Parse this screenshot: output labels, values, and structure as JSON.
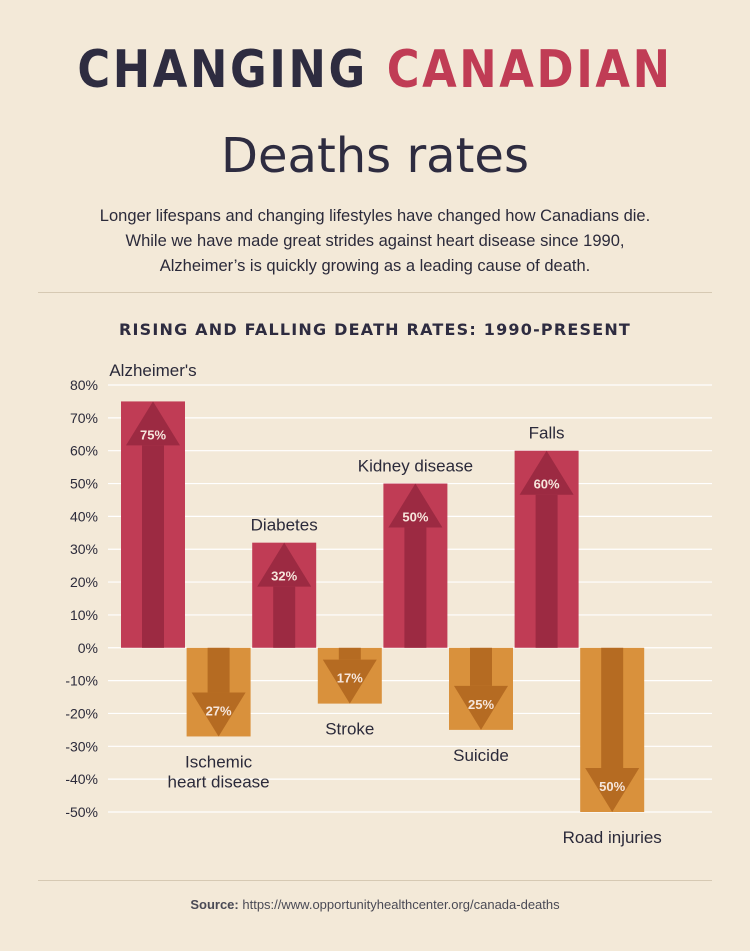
{
  "title_part1": "CHANGING",
  "title_part2": "CANADIAN",
  "subtitle": "Deaths rates",
  "description_lines": [
    "Longer lifespans and changing lifestyles have changed how Canadians die.",
    "While we have made great strides against heart disease since 1990,",
    "Alzheimer’s is quickly growing as a leading cause of death."
  ],
  "source_label": "Source:",
  "source_url": "https://www.opportunityhealthcenter.org/canada-deaths",
  "colors": {
    "rise_bar": "#c03c55",
    "rise_arrow": "#9c2a42",
    "fall_bar": "#d9913c",
    "fall_arrow": "#b56b22",
    "grid": "#ffffff",
    "text": "#2b2a3a"
  },
  "chart_data": {
    "type": "bar",
    "title": "RISING AND FALLING DEATH RATES: 1990-PRESENT",
    "categories": [
      "Alzheimer's",
      "Ischemic heart disease",
      "Diabetes",
      "Stroke",
      "Kidney disease",
      "Suicide",
      "Falls",
      "Road injuries"
    ],
    "category_label_lines": [
      [
        "Alzheimer's"
      ],
      [
        "Ischemic",
        "heart disease"
      ],
      [
        "Diabetes"
      ],
      [
        "Stroke"
      ],
      [
        "Kidney disease"
      ],
      [
        "Suicide"
      ],
      [
        "Falls"
      ],
      [
        "Road injuries"
      ]
    ],
    "values": [
      75,
      -27,
      32,
      -17,
      50,
      -25,
      60,
      -50
    ],
    "data_labels": [
      "75%",
      "27%",
      "32%",
      "17%",
      "50%",
      "25%",
      "60%",
      "50%"
    ],
    "ylim": [
      -50,
      80
    ],
    "yticks": [
      80,
      70,
      60,
      50,
      40,
      30,
      20,
      10,
      0,
      -10,
      -20,
      -30,
      -40,
      -50
    ],
    "ytick_labels": [
      "80%",
      "70%",
      "60%",
      "50%",
      "40%",
      "30%",
      "20%",
      "10%",
      "0%",
      "-10%",
      "-20%",
      "-30%",
      "-40%",
      "-50%"
    ],
    "xlabel": "",
    "ylabel": "",
    "grid": true,
    "legend": "none"
  }
}
